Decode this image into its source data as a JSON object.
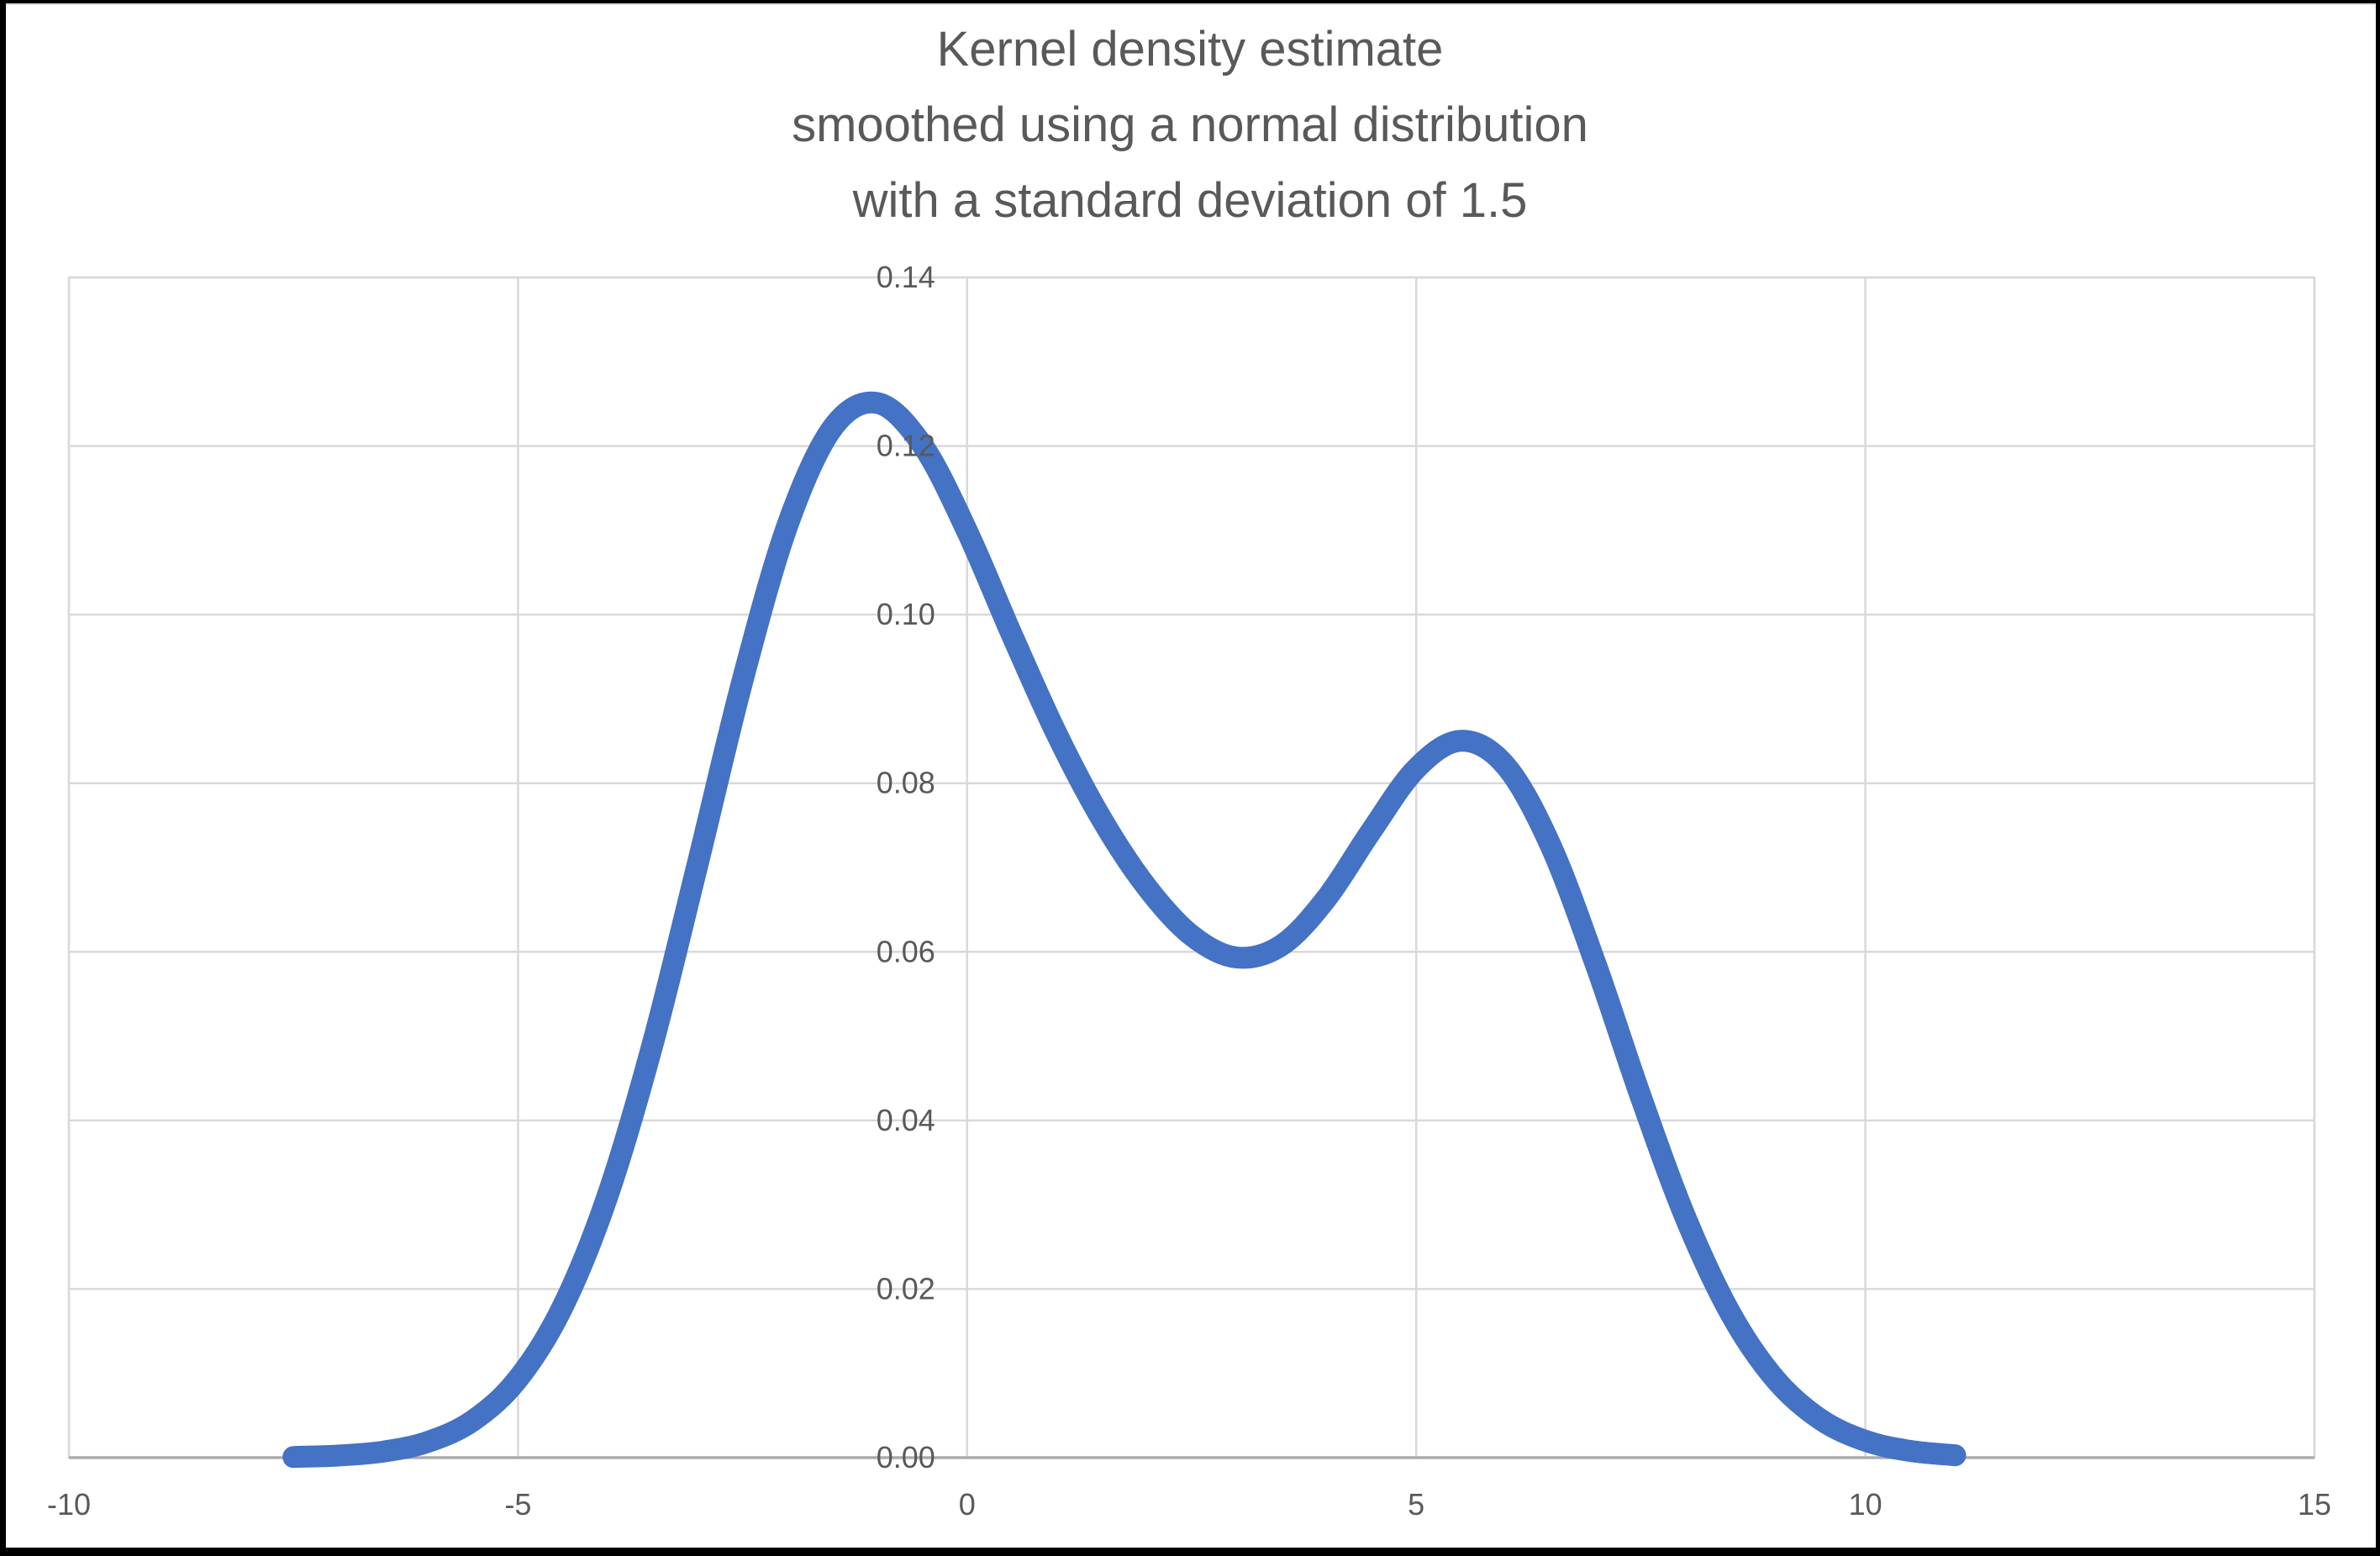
{
  "frame": {
    "background_color": "#ffffff",
    "border_color": "#000000"
  },
  "chart_data": {
    "type": "line",
    "title_lines": [
      "Kernel density estimate",
      "smoothed using a normal distribution",
      "with a standard deviation of 1.5"
    ],
    "title_color": "#595959",
    "tick_label_color": "#595959",
    "gridline_color": "#d9d9d9",
    "plot_border_color": "#d9d9d9",
    "axis_line_color": "#ababab",
    "grid": true,
    "legend": "none",
    "x_range": [
      -10,
      15
    ],
    "y_range": [
      0,
      0.14
    ],
    "x_ticks": [
      {
        "value": -10,
        "label": "-10"
      },
      {
        "value": -5,
        "label": "-5"
      },
      {
        "value": 0,
        "label": "0"
      },
      {
        "value": 5,
        "label": "5"
      },
      {
        "value": 10,
        "label": "10"
      },
      {
        "value": 15,
        "label": "15"
      }
    ],
    "y_ticks": [
      {
        "value": 0.0,
        "label": "0.00"
      },
      {
        "value": 0.02,
        "label": "0.02"
      },
      {
        "value": 0.04,
        "label": "0.04"
      },
      {
        "value": 0.06,
        "label": "0.06"
      },
      {
        "value": 0.08,
        "label": "0.08"
      },
      {
        "value": 0.1,
        "label": "0.10"
      },
      {
        "value": 0.12,
        "label": "0.12"
      },
      {
        "value": 0.14,
        "label": "0.14"
      }
    ],
    "series": [
      {
        "name": "kernel-density-estimate",
        "color": "#4472c4",
        "stroke_width": 26,
        "points": [
          [
            -7.5,
            8e-05
          ],
          [
            -7.0,
            0.00025
          ],
          [
            -6.5,
            0.00072
          ],
          [
            -6.0,
            0.00188
          ],
          [
            -5.5,
            0.00441
          ],
          [
            -5.0,
            0.00935
          ],
          [
            -4.5,
            0.01795
          ],
          [
            -4.0,
            0.03116
          ],
          [
            -3.5,
            0.04909
          ],
          [
            -3.0,
            0.07043
          ],
          [
            -2.5,
            0.0922
          ],
          [
            -2.0,
            0.11059
          ],
          [
            -1.5,
            0.12213
          ],
          [
            -1.0,
            0.1251
          ],
          [
            -0.5,
            0.12014
          ],
          [
            0.0,
            0.10989
          ],
          [
            0.5,
            0.09757
          ],
          [
            1.0,
            0.08578
          ],
          [
            1.5,
            0.07572
          ],
          [
            2.0,
            0.06768
          ],
          [
            2.5,
            0.06193
          ],
          [
            3.0,
            0.05933
          ],
          [
            3.5,
            0.06078
          ],
          [
            4.0,
            0.06633
          ],
          [
            4.5,
            0.07435
          ],
          [
            5.0,
            0.08173
          ],
          [
            5.5,
            0.08504
          ],
          [
            6.0,
            0.08202
          ],
          [
            6.5,
            0.07252
          ],
          [
            7.0,
            0.05846
          ],
          [
            7.5,
            0.04282
          ],
          [
            8.0,
            0.02843
          ],
          [
            8.5,
            0.01708
          ],
          [
            9.0,
            0.00927
          ],
          [
            9.5,
            0.00454
          ],
          [
            10.0,
            0.002
          ],
          [
            10.5,
            0.0008
          ],
          [
            11.0,
            0.00028
          ]
        ]
      }
    ]
  }
}
